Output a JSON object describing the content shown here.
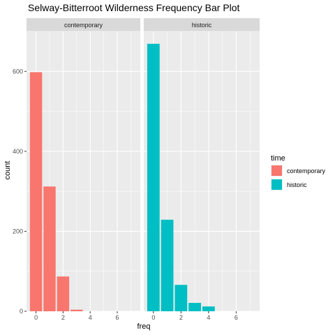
{
  "chart_data": {
    "type": "bar",
    "title": "Selway-Bitterroot Wilderness Frequency Bar Plot",
    "xlabel": "freq",
    "ylabel": "count",
    "x_ticks": [
      0,
      2,
      4,
      6
    ],
    "y_ticks": [
      0,
      200,
      400,
      600
    ],
    "xlim": [
      -0.7,
      7.7
    ],
    "ylim": [
      0,
      700
    ],
    "grid": true,
    "legend": {
      "title": "time",
      "position": "right",
      "entries": [
        {
          "label": "contemporary",
          "color": "#F8766D"
        },
        {
          "label": "historic",
          "color": "#00BFC4"
        }
      ]
    },
    "facets": [
      {
        "strip": "contemporary",
        "color": "#F8766D",
        "x": [
          0,
          1,
          2,
          3
        ],
        "values": [
          598,
          312,
          87,
          4
        ]
      },
      {
        "strip": "historic",
        "color": "#00BFC4",
        "x": [
          0,
          1,
          2,
          3,
          4
        ],
        "values": [
          669,
          229,
          66,
          21,
          12
        ]
      }
    ]
  }
}
